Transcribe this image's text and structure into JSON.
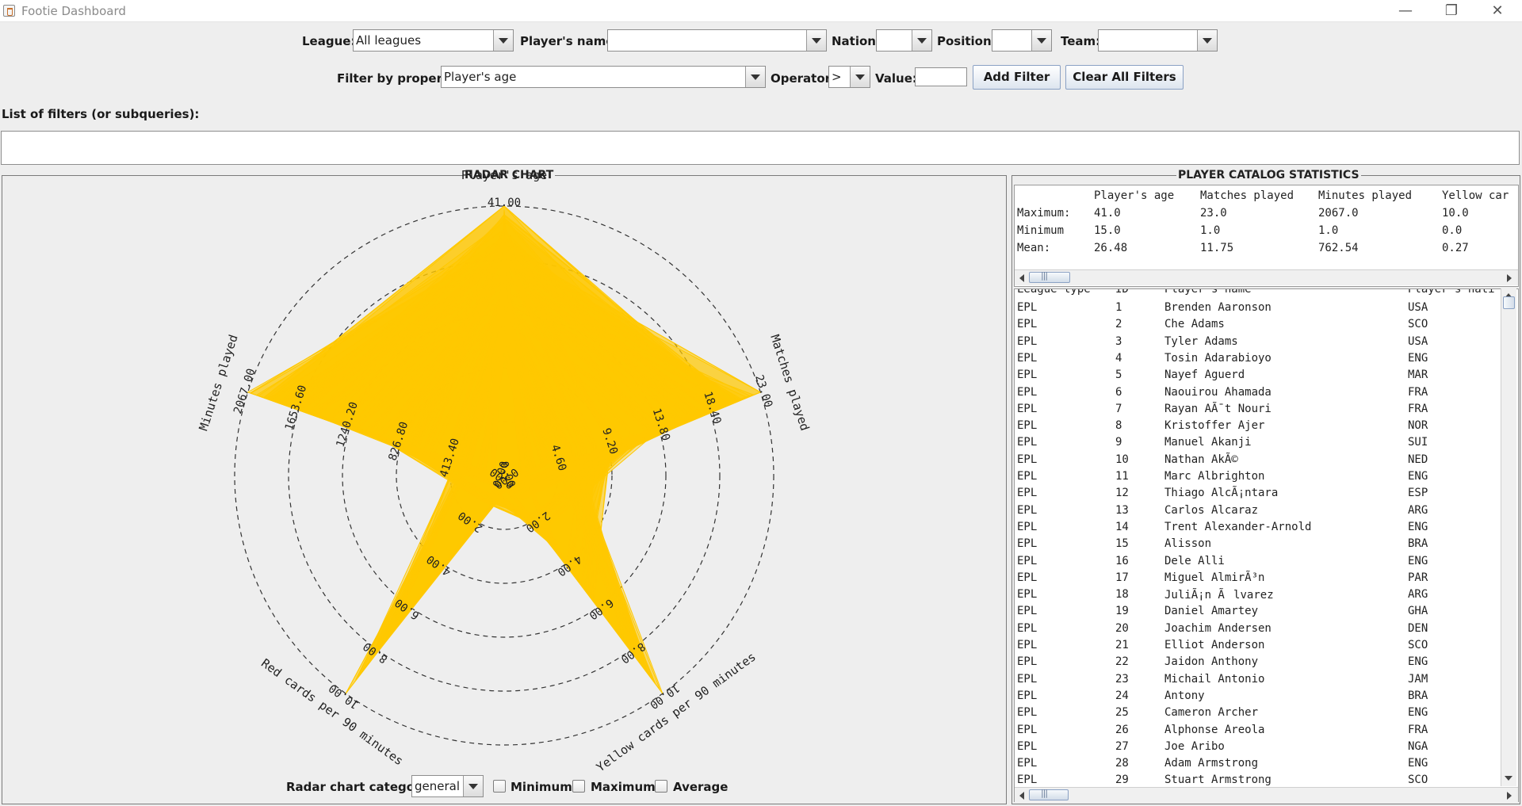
{
  "window": {
    "title": "Footie Dashboard",
    "controls": [
      "minimize-icon",
      "maximize-icon",
      "close-icon"
    ]
  },
  "filters": {
    "league_label": "League:",
    "league_value": "All leagues",
    "player_name_label": "Player's name:",
    "player_name_value": "",
    "nation_label": "Nation:",
    "nation_value": "",
    "position_label": "Position:",
    "position_value": "",
    "team_label": "Team:",
    "team_value": "",
    "property_label": "Filter by property:",
    "property_value": "Player's age",
    "operator_label": "Operator:",
    "operator_value": ">",
    "value_label": "Value:",
    "value_value": "",
    "add_filter": "Add Filter",
    "clear_filters": "Clear All Filters",
    "list_label": "List of filters (or subqueries):",
    "list_value": ""
  },
  "radar": {
    "panel_title": "RADAR CHART",
    "category_label": "Radar chart category:",
    "category_value": "general",
    "checkbox_minimum": "Minimum",
    "checkbox_maximum": "Maximum",
    "checkbox_average": "Average"
  },
  "chart_data": {
    "type": "radar",
    "title": "RADAR CHART",
    "axes": [
      {
        "name": "Player's age",
        "max": 41.0,
        "ticks": [
          "41.00"
        ]
      },
      {
        "name": "Matches played",
        "max": 23.0,
        "ticks": [
          "23.00",
          "18.40",
          "13.80",
          "9.20",
          "4.60",
          "0.00"
        ]
      },
      {
        "name": "Yellow cards per 90 minutes",
        "max": 10.0,
        "ticks": [
          "10.00",
          "8.00",
          "6.00",
          "4.00",
          "2.00",
          "0.00"
        ]
      },
      {
        "name": "Red cards per 90 minutes",
        "max": 10.0,
        "ticks": [
          "10.00",
          "8.00",
          "6.00",
          "4.00",
          "2.00",
          "0.00"
        ]
      },
      {
        "name": "Minutes played",
        "max": 2067.0,
        "ticks": [
          "2067.00",
          "1653.60",
          "1240.20",
          "826.80",
          "413.40",
          "0.00"
        ]
      }
    ],
    "rings": 5,
    "series_color": "#FFC800",
    "grid": "dashed"
  },
  "stats": {
    "panel_title": "PLAYER CATALOG STATISTICS",
    "columns": [
      "",
      "Player's age",
      "Matches played",
      "Minutes played",
      "Yellow car"
    ],
    "rows": [
      {
        "label": "Maximum:",
        "values": [
          "41.0",
          "23.0",
          "2067.0",
          "10.0"
        ]
      },
      {
        "label": "Minimum",
        "values": [
          "15.0",
          "1.0",
          "1.0",
          "0.0"
        ]
      },
      {
        "label": "Mean:",
        "values": [
          "26.48",
          "11.75",
          "762.54",
          "0.27"
        ]
      }
    ]
  },
  "players": {
    "columns": [
      "League type",
      "ID",
      "Player's name",
      "Player's nati"
    ],
    "rows": [
      [
        "EPL",
        "1",
        "Brenden Aaronson",
        "USA"
      ],
      [
        "EPL",
        "2",
        "Che Adams",
        "SCO"
      ],
      [
        "EPL",
        "3",
        "Tyler Adams",
        "USA"
      ],
      [
        "EPL",
        "4",
        "Tosin Adarabioyo",
        "ENG"
      ],
      [
        "EPL",
        "5",
        "Nayef Aguerd",
        "MAR"
      ],
      [
        "EPL",
        "6",
        "Naouirou Ahamada",
        "FRA"
      ],
      [
        "EPL",
        "7",
        "Rayan AÃ¯t Nouri",
        "FRA"
      ],
      [
        "EPL",
        "8",
        "Kristoffer Ajer",
        "NOR"
      ],
      [
        "EPL",
        "9",
        "Manuel Akanji",
        "SUI"
      ],
      [
        "EPL",
        "10",
        "Nathan AkÃ©",
        "NED"
      ],
      [
        "EPL",
        "11",
        "Marc Albrighton",
        "ENG"
      ],
      [
        "EPL",
        "12",
        "Thiago AlcÃ¡ntara",
        "ESP"
      ],
      [
        "EPL",
        "13",
        "Carlos Alcaraz",
        "ARG"
      ],
      [
        "EPL",
        "14",
        "Trent Alexander-Arnold",
        "ENG"
      ],
      [
        "EPL",
        "15",
        "Alisson",
        "BRA"
      ],
      [
        "EPL",
        "16",
        "Dele Alli",
        "ENG"
      ],
      [
        "EPL",
        "17",
        "Miguel AlmirÃ³n",
        "PAR"
      ],
      [
        "EPL",
        "18",
        "JuliÃ¡n Ãlvarez",
        "ARG"
      ],
      [
        "EPL",
        "19",
        "Daniel Amartey",
        "GHA"
      ],
      [
        "EPL",
        "20",
        "Joachim Andersen",
        "DEN"
      ],
      [
        "EPL",
        "21",
        "Elliot Anderson",
        "SCO"
      ],
      [
        "EPL",
        "22",
        "Jaidon Anthony",
        "ENG"
      ],
      [
        "EPL",
        "23",
        "Michail Antonio",
        "JAM"
      ],
      [
        "EPL",
        "24",
        "Antony",
        "BRA"
      ],
      [
        "EPL",
        "25",
        "Cameron Archer",
        "ENG"
      ],
      [
        "EPL",
        "26",
        "Alphonse Areola",
        "FRA"
      ],
      [
        "EPL",
        "27",
        "Joe Aribo",
        "NGA"
      ],
      [
        "EPL",
        "28",
        "Adam Armstrong",
        "ENG"
      ],
      [
        "EPL",
        "29",
        "Stuart Armstrong",
        "SCO"
      ]
    ]
  }
}
